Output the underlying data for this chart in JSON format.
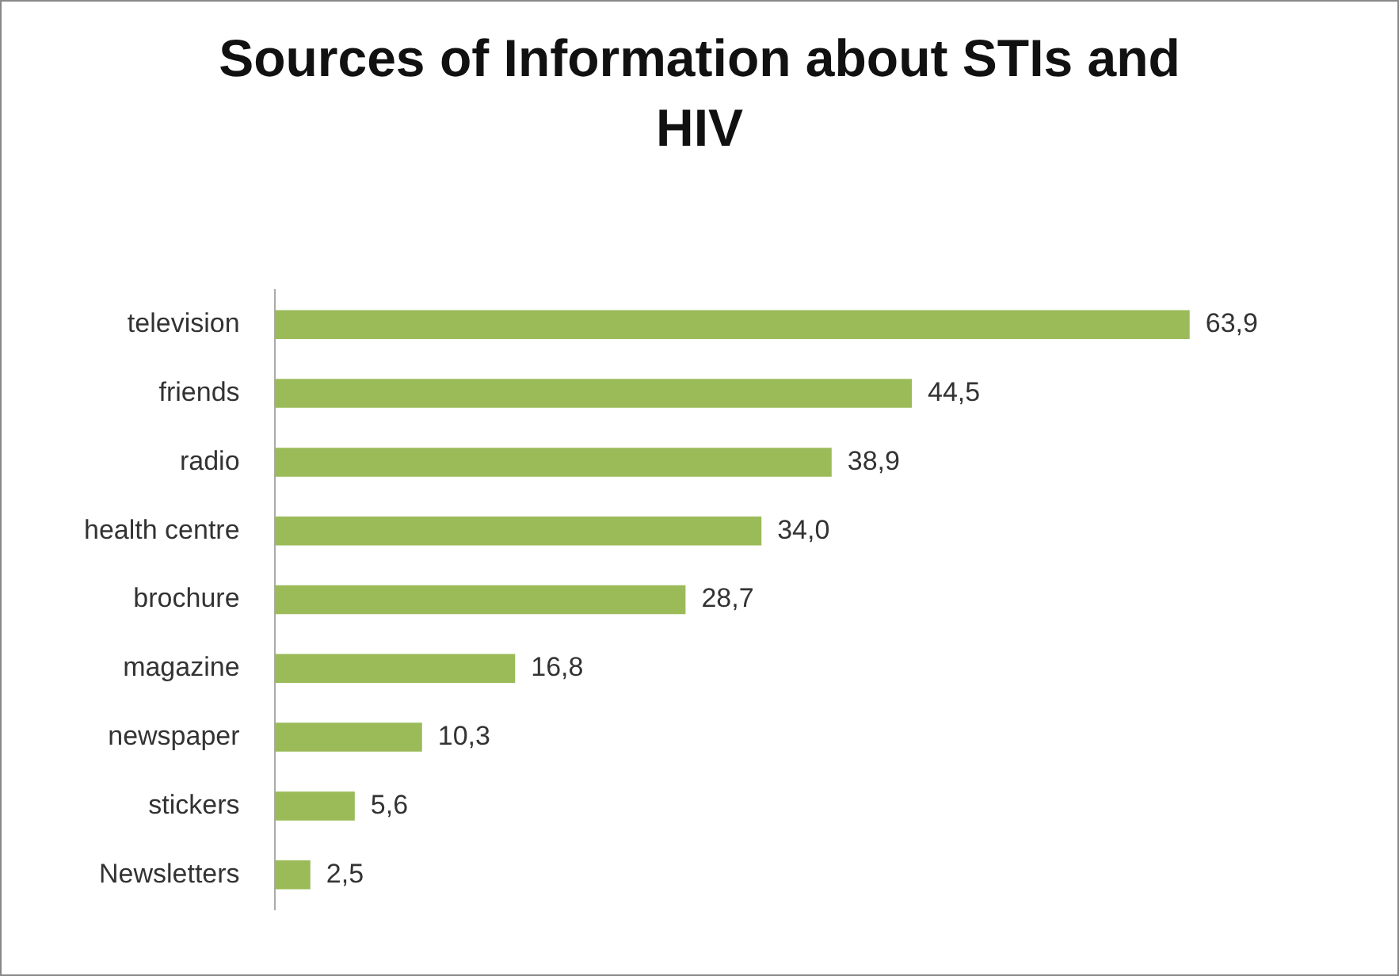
{
  "chart_data": {
    "type": "bar",
    "orientation": "horizontal",
    "title": "Sources of Information about STIs and HIV",
    "categories": [
      "television",
      "friends",
      "radio",
      "health centre",
      "brochure",
      "magazine",
      "newspaper",
      "stickers",
      "Newsletters"
    ],
    "values": [
      63.9,
      44.5,
      38.9,
      34.0,
      28.7,
      16.8,
      10.3,
      5.6,
      2.5
    ],
    "value_labels": [
      "63,9",
      "44,5",
      "38,9",
      "34,0",
      "28,7",
      "16,8",
      "10,3",
      "5,6",
      "2,5"
    ],
    "color": "#9bbb59"
  }
}
